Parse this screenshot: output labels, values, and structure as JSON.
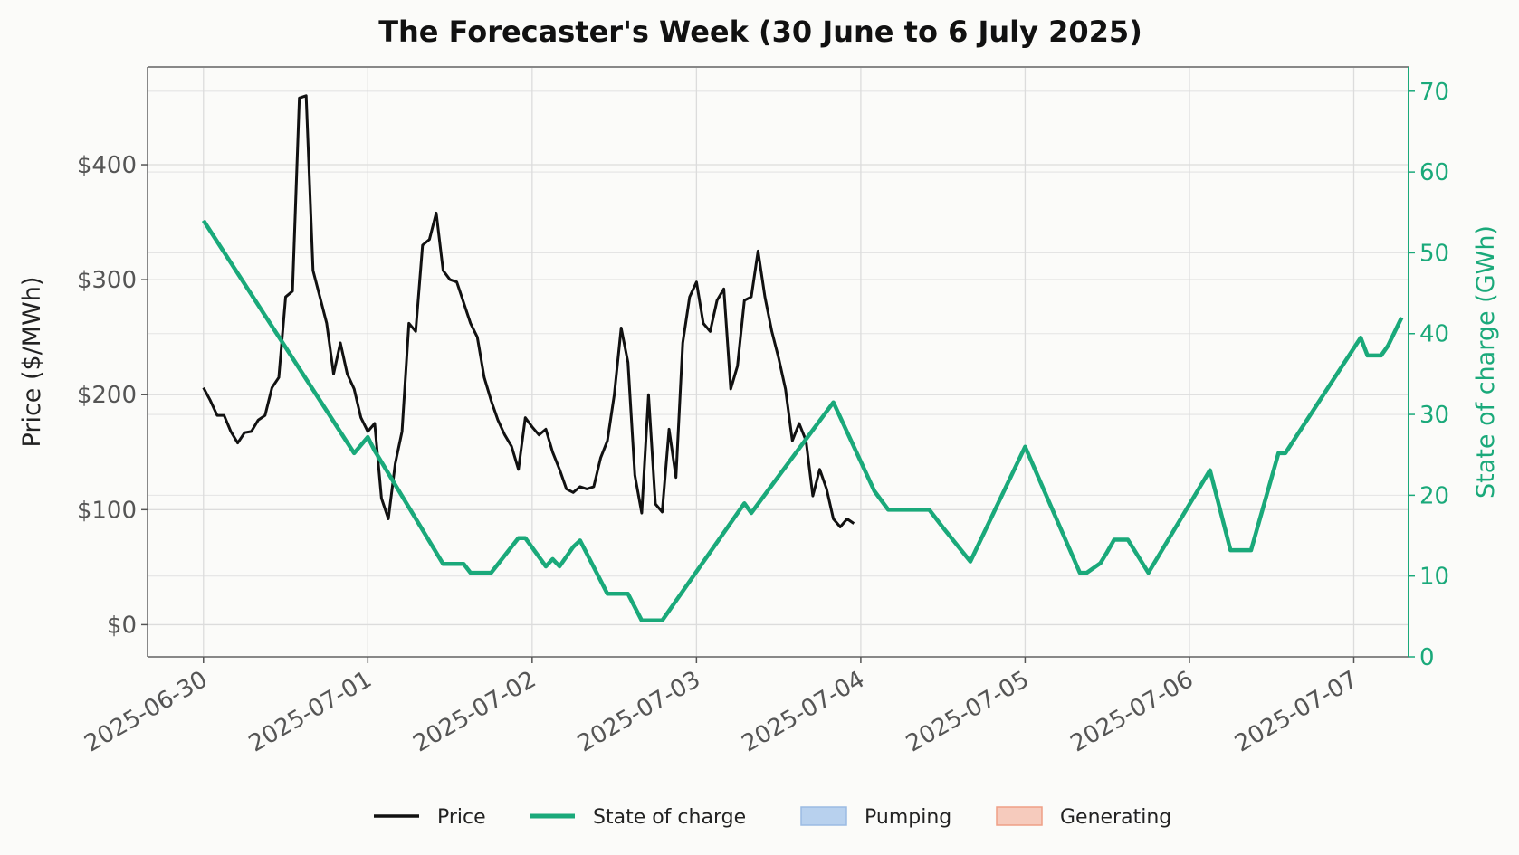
{
  "chart_data": {
    "type": "line",
    "title": "The Forecaster's Week (30 June to 6 July 2025)",
    "ylabel": "Price ($/MWh)",
    "y2label": "State of charge (GWh)",
    "ylim": [
      -28,
      485
    ],
    "y2lim": [
      0,
      73
    ],
    "y_ticks": [
      "$0",
      "$100",
      "$200",
      "$300",
      "$400"
    ],
    "y_tick_values": [
      0,
      100,
      200,
      300,
      400
    ],
    "y2_ticks": [
      "0",
      "10",
      "20",
      "30",
      "40",
      "50",
      "60",
      "70"
    ],
    "y2_tick_values": [
      0,
      10,
      20,
      30,
      40,
      50,
      60,
      70
    ],
    "x_ticks": [
      "2025-06-30",
      "2025-07-01",
      "2025-07-02",
      "2025-07-03",
      "2025-07-04",
      "2025-07-05",
      "2025-07-06",
      "2025-07-07"
    ],
    "xlim": [
      "2025-06-29 15:50",
      "2025-07-07 08:00"
    ],
    "grid": true,
    "legend_position": "bottom-center",
    "legend": [
      {
        "label": "Price",
        "color": "#111111",
        "kind": "line"
      },
      {
        "label": "State of charge",
        "color": "#1aa97a",
        "kind": "line"
      },
      {
        "label": "Pumping",
        "color": "#b8d1ee",
        "kind": "patch"
      },
      {
        "label": "Generating",
        "color": "#f6cbbd",
        "kind": "patch"
      }
    ],
    "colors": {
      "price": "#111111",
      "soc": "#1aa97a",
      "pumping": "#b8d1ee",
      "generating": "#f6cbbd"
    },
    "series": [
      {
        "name": "Price",
        "axis": "left",
        "points": [
          [
            "2025-06-30 00:00",
            206
          ],
          [
            "2025-06-30 01:00",
            195
          ],
          [
            "2025-06-30 02:00",
            182
          ],
          [
            "2025-06-30 03:00",
            182
          ],
          [
            "2025-06-30 04:00",
            168
          ],
          [
            "2025-06-30 05:00",
            158
          ],
          [
            "2025-06-30 06:00",
            167
          ],
          [
            "2025-06-30 07:00",
            168
          ],
          [
            "2025-06-30 08:00",
            178
          ],
          [
            "2025-06-30 09:00",
            182
          ],
          [
            "2025-06-30 10:00",
            206
          ],
          [
            "2025-06-30 11:00",
            215
          ],
          [
            "2025-06-30 12:00",
            285
          ],
          [
            "2025-06-30 13:00",
            290
          ],
          [
            "2025-06-30 14:00",
            458
          ],
          [
            "2025-06-30 15:00",
            460
          ],
          [
            "2025-06-30 16:00",
            308
          ],
          [
            "2025-06-30 17:00",
            285
          ],
          [
            "2025-06-30 18:00",
            262
          ],
          [
            "2025-06-30 19:00",
            218
          ],
          [
            "2025-06-30 20:00",
            245
          ],
          [
            "2025-06-30 21:00",
            218
          ],
          [
            "2025-06-30 22:00",
            205
          ],
          [
            "2025-06-30 23:00",
            180
          ],
          [
            "2025-07-01 00:00",
            168
          ],
          [
            "2025-07-01 01:00",
            175
          ],
          [
            "2025-07-01 02:00",
            110
          ],
          [
            "2025-07-01 03:00",
            92
          ],
          [
            "2025-07-01 04:00",
            140
          ],
          [
            "2025-07-01 05:00",
            168
          ],
          [
            "2025-07-01 06:00",
            262
          ],
          [
            "2025-07-01 07:00",
            255
          ],
          [
            "2025-07-01 08:00",
            330
          ],
          [
            "2025-07-01 09:00",
            335
          ],
          [
            "2025-07-01 10:00",
            358
          ],
          [
            "2025-07-01 11:00",
            308
          ],
          [
            "2025-07-01 12:00",
            300
          ],
          [
            "2025-07-01 13:00",
            298
          ],
          [
            "2025-07-01 14:00",
            280
          ],
          [
            "2025-07-01 15:00",
            262
          ],
          [
            "2025-07-01 16:00",
            250
          ],
          [
            "2025-07-01 17:00",
            215
          ],
          [
            "2025-07-01 18:00",
            195
          ],
          [
            "2025-07-01 19:00",
            178
          ],
          [
            "2025-07-01 20:00",
            165
          ],
          [
            "2025-07-01 21:00",
            155
          ],
          [
            "2025-07-01 22:00",
            135
          ],
          [
            "2025-07-01 23:00",
            180
          ],
          [
            "2025-07-02 00:00",
            172
          ],
          [
            "2025-07-02 01:00",
            165
          ],
          [
            "2025-07-02 02:00",
            170
          ],
          [
            "2025-07-02 03:00",
            150
          ],
          [
            "2025-07-02 04:00",
            135
          ],
          [
            "2025-07-02 05:00",
            118
          ],
          [
            "2025-07-02 06:00",
            115
          ],
          [
            "2025-07-02 07:00",
            120
          ],
          [
            "2025-07-02 08:00",
            118
          ],
          [
            "2025-07-02 09:00",
            120
          ],
          [
            "2025-07-02 10:00",
            145
          ],
          [
            "2025-07-02 11:00",
            160
          ],
          [
            "2025-07-02 12:00",
            200
          ],
          [
            "2025-07-02 13:00",
            258
          ],
          [
            "2025-07-02 14:00",
            228
          ],
          [
            "2025-07-02 15:00",
            130
          ],
          [
            "2025-07-02 16:00",
            97
          ],
          [
            "2025-07-02 17:00",
            200
          ],
          [
            "2025-07-02 18:00",
            105
          ],
          [
            "2025-07-02 19:00",
            98
          ],
          [
            "2025-07-02 20:00",
            170
          ],
          [
            "2025-07-02 21:00",
            128
          ],
          [
            "2025-07-02 22:00",
            245
          ],
          [
            "2025-07-02 23:00",
            285
          ],
          [
            "2025-07-03 00:00",
            298
          ],
          [
            "2025-07-03 01:00",
            262
          ],
          [
            "2025-07-03 02:00",
            255
          ],
          [
            "2025-07-03 03:00",
            282
          ],
          [
            "2025-07-03 04:00",
            292
          ],
          [
            "2025-07-03 05:00",
            205
          ],
          [
            "2025-07-03 06:00",
            225
          ],
          [
            "2025-07-03 07:00",
            282
          ],
          [
            "2025-07-03 08:00",
            285
          ],
          [
            "2025-07-03 09:00",
            325
          ],
          [
            "2025-07-03 10:00",
            285
          ],
          [
            "2025-07-03 11:00",
            255
          ],
          [
            "2025-07-03 12:00",
            232
          ],
          [
            "2025-07-03 13:00",
            205
          ],
          [
            "2025-07-03 14:00",
            160
          ],
          [
            "2025-07-03 15:00",
            175
          ],
          [
            "2025-07-03 16:00",
            160
          ],
          [
            "2025-07-03 17:00",
            112
          ],
          [
            "2025-07-03 18:00",
            135
          ],
          [
            "2025-07-03 19:00",
            118
          ],
          [
            "2025-07-03 20:00",
            92
          ],
          [
            "2025-07-03 21:00",
            85
          ],
          [
            "2025-07-03 22:00",
            92
          ],
          [
            "2025-07-03 23:00",
            88
          ]
        ]
      },
      {
        "name": "State of charge",
        "axis": "right",
        "points": [
          [
            "2025-06-30 00:00",
            54
          ],
          [
            "2025-06-30 22:00",
            25.2
          ],
          [
            "2025-07-01 00:00",
            27.2
          ],
          [
            "2025-07-01 01:00",
            25.5
          ],
          [
            "2025-07-01 11:00",
            11.5
          ],
          [
            "2025-07-01 14:00",
            11.5
          ],
          [
            "2025-07-01 15:00",
            10.4
          ],
          [
            "2025-07-01 18:00",
            10.4
          ],
          [
            "2025-07-01 22:00",
            14.7
          ],
          [
            "2025-07-01 23:00",
            14.7
          ],
          [
            "2025-07-02 02:00",
            11.2
          ],
          [
            "2025-07-02 03:00",
            12.1
          ],
          [
            "2025-07-02 04:00",
            11.2
          ],
          [
            "2025-07-02 06:00",
            13.6
          ],
          [
            "2025-07-02 07:00",
            14.4
          ],
          [
            "2025-07-02 11:00",
            7.8
          ],
          [
            "2025-07-02 14:00",
            7.8
          ],
          [
            "2025-07-02 16:00",
            4.5
          ],
          [
            "2025-07-02 19:00",
            4.5
          ],
          [
            "2025-07-03 07:00",
            19.0
          ],
          [
            "2025-07-03 08:00",
            17.8
          ],
          [
            "2025-07-03 20:00",
            31.5
          ],
          [
            "2025-07-04 02:00",
            20.5
          ],
          [
            "2025-07-04 04:00",
            18.2
          ],
          [
            "2025-07-04 10:00",
            18.2
          ],
          [
            "2025-07-04 12:00",
            16.0
          ],
          [
            "2025-07-04 16:00",
            11.8
          ],
          [
            "2025-07-05 00:00",
            26.0
          ],
          [
            "2025-07-05 08:00",
            10.4
          ],
          [
            "2025-07-05 09:00",
            10.4
          ],
          [
            "2025-07-05 11:00",
            11.6
          ],
          [
            "2025-07-05 12:00",
            13.0
          ],
          [
            "2025-07-05 13:00",
            14.5
          ],
          [
            "2025-07-05 15:00",
            14.5
          ],
          [
            "2025-07-05 18:00",
            10.4
          ],
          [
            "2025-07-06 03:00",
            23.1
          ],
          [
            "2025-07-06 06:00",
            13.2
          ],
          [
            "2025-07-06 09:00",
            13.2
          ],
          [
            "2025-07-06 13:00",
            25.2
          ],
          [
            "2025-07-06 14:00",
            25.2
          ],
          [
            "2025-07-07 01:00",
            39.5
          ],
          [
            "2025-07-07 02:00",
            37.3
          ],
          [
            "2025-07-07 04:00",
            37.3
          ],
          [
            "2025-07-07 05:00",
            38.5
          ],
          [
            "2025-07-07 07:00",
            42.0
          ]
        ]
      }
    ],
    "pumping_periods": [],
    "generating_periods": []
  }
}
